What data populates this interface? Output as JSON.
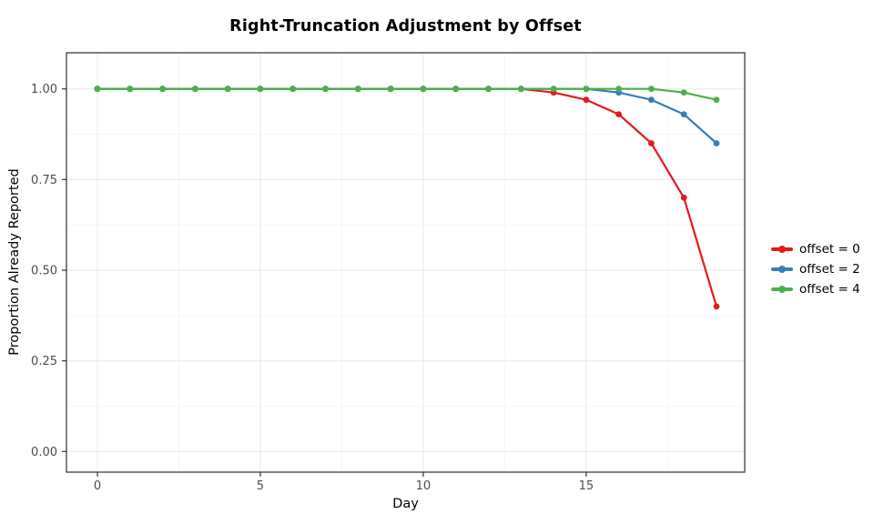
{
  "chart_data": {
    "type": "line",
    "title": "Right-Truncation Adjustment by Offset",
    "xlabel": "Day",
    "ylabel": "Proportion Already Reported",
    "x": [
      0,
      1,
      2,
      3,
      4,
      5,
      6,
      7,
      8,
      9,
      10,
      11,
      12,
      13,
      14,
      15,
      16,
      17,
      18,
      19
    ],
    "series": [
      {
        "name": "offset = 0",
        "color": "#e41a1c",
        "values": [
          1.0,
          1.0,
          1.0,
          1.0,
          1.0,
          1.0,
          1.0,
          1.0,
          1.0,
          1.0,
          1.0,
          1.0,
          1.0,
          1.0,
          0.99,
          0.97,
          0.93,
          0.85,
          0.7,
          0.4
        ]
      },
      {
        "name": "offset = 2",
        "color": "#377eb8",
        "values": [
          1.0,
          1.0,
          1.0,
          1.0,
          1.0,
          1.0,
          1.0,
          1.0,
          1.0,
          1.0,
          1.0,
          1.0,
          1.0,
          1.0,
          1.0,
          1.0,
          0.99,
          0.97,
          0.93,
          0.85
        ]
      },
      {
        "name": "offset = 4",
        "color": "#4daf4a",
        "values": [
          1.0,
          1.0,
          1.0,
          1.0,
          1.0,
          1.0,
          1.0,
          1.0,
          1.0,
          1.0,
          1.0,
          1.0,
          1.0,
          1.0,
          1.0,
          1.0,
          1.0,
          1.0,
          0.99,
          0.97
        ]
      }
    ],
    "x_ticks": [
      0,
      5,
      10,
      15
    ],
    "x_tick_labels": [
      "0",
      "5",
      "10",
      "15"
    ],
    "x_minor_ticks": [
      2.5,
      7.5,
      12.5,
      17.5
    ],
    "y_ticks": [
      0.0,
      0.25,
      0.5,
      0.75,
      1.0
    ],
    "y_tick_labels": [
      "0.00",
      "0.25",
      "0.50",
      "0.75",
      "1.00"
    ],
    "y_minor_ticks": [
      0.125,
      0.375,
      0.625,
      0.875
    ],
    "xlim": [
      -0.95,
      19.87
    ],
    "ylim": [
      -0.057,
      1.1
    ],
    "grid": "major+minor",
    "legend_position": "right-outside",
    "theme": {
      "background": "#ffffff",
      "panel_border": "#4d4d4d",
      "grid_major": "#ececec",
      "grid_minor": "#f5f5f5",
      "tick_mark": "#333333",
      "tick_label_color": "#4d4d4d"
    }
  }
}
